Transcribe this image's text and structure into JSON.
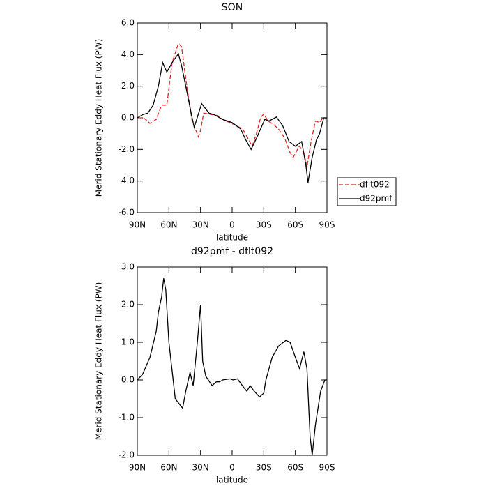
{
  "chart_data": [
    {
      "type": "line",
      "title": "SON",
      "xlabel": "latitude",
      "ylabel": "Merid Stationary Eddy Heat Flux (PW)",
      "xlim": [
        90,
        -90
      ],
      "xticks": [
        {
          "value": 90,
          "label": "90N"
        },
        {
          "value": 60,
          "label": "60N"
        },
        {
          "value": 30,
          "label": "30N"
        },
        0,
        {
          "value": -30,
          "label": "30S"
        },
        {
          "value": -60,
          "label": "60S"
        },
        {
          "value": -90,
          "label": "90S"
        }
      ],
      "ylim": [
        -6,
        6
      ],
      "yticks": [
        {
          "value": 6,
          "label": "6.0"
        },
        {
          "value": 4,
          "label": "4.0"
        },
        {
          "value": 2,
          "label": "2.0"
        },
        {
          "value": 0,
          "label": "0.0"
        },
        {
          "value": -2,
          "label": "-2.0"
        },
        {
          "value": -4,
          "label": "-4.0"
        },
        {
          "value": -6,
          "label": "-6.0"
        }
      ],
      "legend": "right",
      "series": [
        {
          "name": "dflt092",
          "color": "#e02020",
          "linestyle": "dashed",
          "x": [
            90,
            84,
            78,
            72,
            67,
            62,
            57,
            51,
            48,
            43,
            38,
            32,
            30,
            27,
            19,
            14,
            9,
            -1,
            -10,
            -15,
            -19,
            -23,
            -27,
            -30,
            -34,
            -39,
            -44,
            -50,
            -55,
            -58,
            -62,
            -64,
            -68,
            -71,
            -75,
            -79,
            -83,
            -86,
            -90
          ],
          "values": [
            0,
            0,
            -0.35,
            -0.1,
            0.8,
            0.8,
            3.5,
            4.7,
            4.5,
            2.0,
            -0.2,
            -1.2,
            -0.8,
            0.3,
            0.2,
            0.15,
            -0.1,
            -0.4,
            -0.7,
            -1.3,
            -1.8,
            -1.0,
            0.0,
            0.25,
            -0.2,
            -0.4,
            -0.7,
            -1.3,
            -2.2,
            -2.5,
            -2.0,
            -1.8,
            -2.2,
            -3.1,
            -1.5,
            -0.2,
            -0.3,
            0,
            0
          ]
        },
        {
          "name": "d92pmf",
          "color": "#000000",
          "linestyle": "solid",
          "x": [
            90,
            85,
            80,
            75,
            70,
            66,
            62,
            56,
            51,
            48,
            44,
            38,
            36,
            29,
            22,
            17,
            9,
            0,
            -8,
            -13,
            -18,
            -23,
            -31,
            -35,
            -42,
            -48,
            -54,
            -60,
            -66,
            -70,
            -72,
            -76,
            -80,
            -83,
            -87,
            -90
          ],
          "values": [
            0,
            0.2,
            0.3,
            0.8,
            2.0,
            3.5,
            2.9,
            3.6,
            4.05,
            3.3,
            2.0,
            0.0,
            -0.6,
            0.9,
            0.3,
            0.2,
            -0.1,
            -0.3,
            -0.7,
            -1.4,
            -2.0,
            -1.3,
            -0.1,
            -0.2,
            0.05,
            -0.5,
            -1.5,
            -1.8,
            -1.5,
            -3.0,
            -4.1,
            -2.5,
            -1.4,
            -1.0,
            0,
            0
          ]
        }
      ]
    },
    {
      "type": "line",
      "title": "d92pmf - dflt092",
      "xlabel": "latitude",
      "ylabel": "Merid Stationary Eddy Heat Flux (PW)",
      "xlim": [
        90,
        -90
      ],
      "xticks": [
        {
          "value": 90,
          "label": "90N"
        },
        {
          "value": 60,
          "label": "60N"
        },
        {
          "value": 30,
          "label": "30N"
        },
        0,
        {
          "value": -30,
          "label": "30S"
        },
        {
          "value": -60,
          "label": "60S"
        },
        {
          "value": -90,
          "label": "90S"
        }
      ],
      "ylim": [
        -2,
        3
      ],
      "yticks": [
        {
          "value": 3,
          "label": "3.0"
        },
        {
          "value": 2,
          "label": "2.0"
        },
        {
          "value": 1,
          "label": "1.0"
        },
        {
          "value": 0,
          "label": "0.0"
        },
        {
          "value": -1,
          "label": "-1.0"
        },
        {
          "value": -2,
          "label": "-2.0"
        }
      ],
      "series": [
        {
          "color": "#000000",
          "linestyle": "solid",
          "x": [
            90,
            85,
            78,
            72,
            70,
            67,
            65,
            63,
            60,
            56,
            54,
            47,
            44,
            40,
            37,
            33,
            30,
            28,
            25,
            19,
            15,
            12,
            9,
            2,
            -1,
            -5,
            -11,
            -14,
            -17,
            -21,
            -26,
            -30,
            -32,
            -38,
            -44,
            -51,
            -55,
            -60,
            -64,
            -68,
            -71,
            -74,
            -76,
            -79,
            -84,
            -88,
            -90
          ],
          "values": [
            0,
            0.15,
            0.6,
            1.3,
            1.8,
            2.2,
            2.7,
            2.4,
            1.0,
            0.0,
            -0.5,
            -0.75,
            -0.3,
            0.2,
            -0.15,
            1.0,
            2.0,
            0.5,
            0.1,
            -0.15,
            -0.05,
            -0.05,
            0.0,
            0.03,
            0.0,
            0.03,
            -0.2,
            -0.3,
            -0.15,
            -0.3,
            -0.45,
            -0.35,
            0.0,
            0.6,
            0.9,
            1.05,
            1.0,
            0.6,
            0.3,
            0.75,
            0.3,
            -1.5,
            -2.0,
            -1.2,
            -0.3,
            0,
            0
          ]
        }
      ]
    }
  ]
}
